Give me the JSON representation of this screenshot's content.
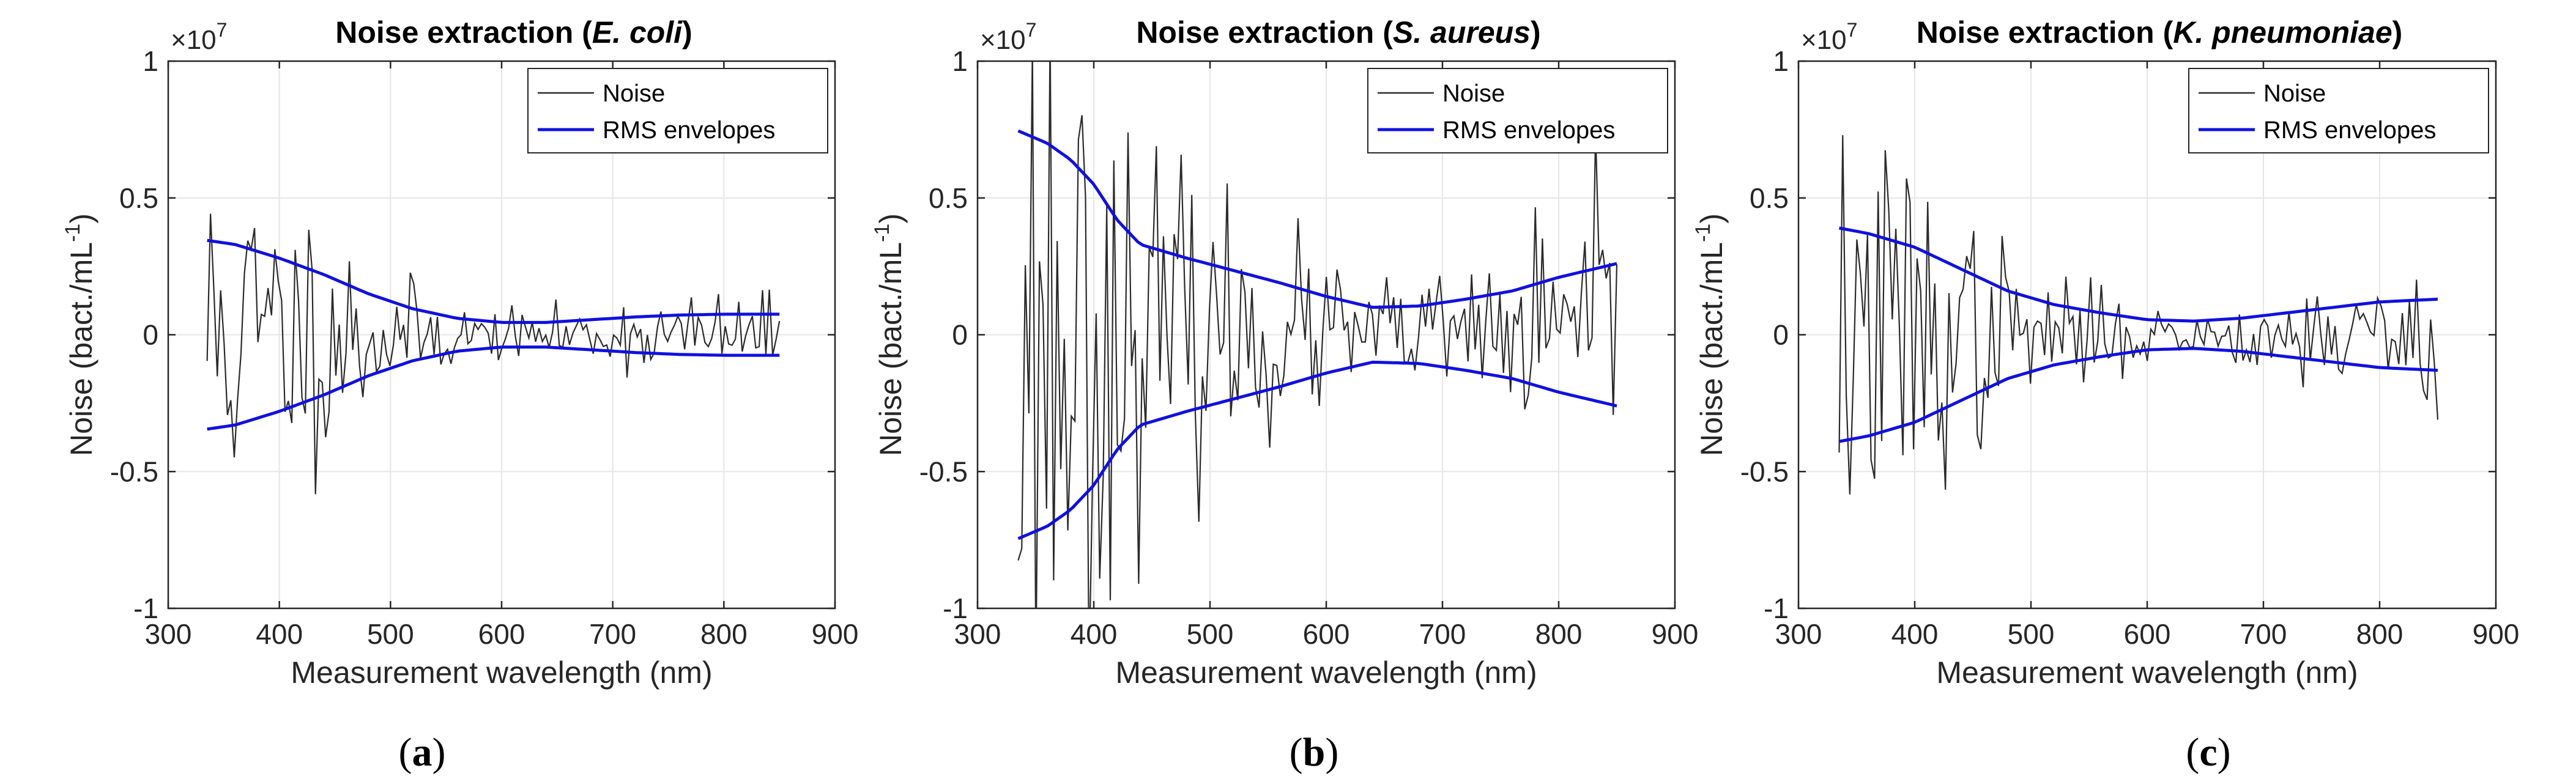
{
  "colors": {
    "noise": "#2b2b2b",
    "envelope": "#1010e0",
    "axis": "#262626",
    "grid": "#e6e6e6"
  },
  "chart_data": [
    {
      "type": "line",
      "panel_label": "a",
      "title_prefix": "Noise extraction (",
      "title_organism": "E. coli",
      "title_suffix": ")",
      "xlabel": "Measurement wavelength (nm)",
      "ylabel": "Noise (bact./mL",
      "ylabel_sup": "-1",
      "ylabel_end": ")",
      "y_multiplier": "×10",
      "y_multiplier_exp": "7",
      "xlim": [
        300,
        900
      ],
      "ylim": [
        -1,
        1
      ],
      "xticks": [
        300,
        400,
        500,
        600,
        700,
        800,
        900
      ],
      "yticks": [
        -1,
        -0.5,
        0,
        0.5,
        1
      ],
      "ytick_labels": [
        "-1",
        "-0.5",
        "0",
        "0.5",
        "1"
      ],
      "grid": true,
      "legend_position": "top-right",
      "noise_x_range": [
        335,
        850
      ],
      "noise_points": 170,
      "noise_seed": 11,
      "series": [
        {
          "name": "Noise",
          "kind": "noise"
        },
        {
          "name": "RMS envelopes",
          "kind": "envelope",
          "x": [
            335,
            360,
            400,
            440,
            480,
            520,
            560,
            600,
            640,
            680,
            720,
            760,
            800,
            850
          ],
          "upper": [
            0.345,
            0.33,
            0.28,
            0.22,
            0.15,
            0.095,
            0.06,
            0.045,
            0.045,
            0.055,
            0.065,
            0.072,
            0.075,
            0.075
          ],
          "lower": [
            -0.345,
            -0.33,
            -0.28,
            -0.22,
            -0.15,
            -0.095,
            -0.06,
            -0.045,
            -0.045,
            -0.055,
            -0.065,
            -0.072,
            -0.075,
            -0.075
          ]
        }
      ]
    },
    {
      "type": "line",
      "panel_label": "b",
      "title_prefix": "Noise extraction (",
      "title_organism": "S. aureus",
      "title_suffix": ")",
      "xlabel": "Measurement wavelength (nm)",
      "ylabel": "Noise (bact./mL",
      "ylabel_sup": "-1",
      "ylabel_end": ")",
      "y_multiplier": "×10",
      "y_multiplier_exp": "7",
      "xlim": [
        300,
        900
      ],
      "ylim": [
        -1,
        1
      ],
      "xticks": [
        300,
        400,
        500,
        600,
        700,
        800,
        900
      ],
      "yticks": [
        -1,
        -0.5,
        0,
        0.5,
        1
      ],
      "ytick_labels": [
        "-1",
        "-0.5",
        "0",
        "0.5",
        "1"
      ],
      "grid": true,
      "legend_position": "top-right",
      "noise_x_range": [
        335,
        850
      ],
      "noise_points": 170,
      "noise_seed": 23,
      "series": [
        {
          "name": "Noise",
          "kind": "noise"
        },
        {
          "name": "RMS envelopes",
          "kind": "envelope",
          "x": [
            335,
            360,
            380,
            400,
            420,
            440,
            480,
            520,
            560,
            600,
            640,
            680,
            720,
            760,
            800,
            850
          ],
          "upper": [
            0.745,
            0.7,
            0.64,
            0.55,
            0.42,
            0.33,
            0.28,
            0.235,
            0.19,
            0.14,
            0.1,
            0.105,
            0.13,
            0.16,
            0.21,
            0.26
          ],
          "lower": [
            -0.745,
            -0.7,
            -0.64,
            -0.55,
            -0.42,
            -0.33,
            -0.28,
            -0.235,
            -0.19,
            -0.14,
            -0.1,
            -0.105,
            -0.13,
            -0.16,
            -0.21,
            -0.26
          ]
        }
      ]
    },
    {
      "type": "line",
      "panel_label": "c",
      "title_prefix": "Noise extraction (",
      "title_organism": "K. pneumoniae",
      "title_suffix": ")",
      "xlabel": "Measurement wavelength (nm)",
      "ylabel": "Noise (bact./mL",
      "ylabel_sup": "-1",
      "ylabel_end": ")",
      "y_multiplier": "×10",
      "y_multiplier_exp": "7",
      "xlim": [
        300,
        900
      ],
      "ylim": [
        -1,
        1
      ],
      "xticks": [
        300,
        400,
        500,
        600,
        700,
        800,
        900
      ],
      "yticks": [
        -1,
        -0.5,
        0,
        0.5,
        1
      ],
      "ytick_labels": [
        "-1",
        "-0.5",
        "0",
        "0.5",
        "1"
      ],
      "grid": true,
      "legend_position": "top-right",
      "noise_x_range": [
        335,
        850
      ],
      "noise_points": 170,
      "noise_seed": 37,
      "series": [
        {
          "name": "Noise",
          "kind": "noise"
        },
        {
          "name": "RMS envelopes",
          "kind": "envelope",
          "x": [
            335,
            360,
            400,
            440,
            480,
            520,
            560,
            600,
            640,
            680,
            720,
            760,
            800,
            850
          ],
          "upper": [
            0.39,
            0.37,
            0.32,
            0.24,
            0.16,
            0.11,
            0.08,
            0.055,
            0.05,
            0.06,
            0.08,
            0.1,
            0.12,
            0.13
          ],
          "lower": [
            -0.39,
            -0.37,
            -0.32,
            -0.24,
            -0.16,
            -0.11,
            -0.08,
            -0.055,
            -0.05,
            -0.06,
            -0.08,
            -0.1,
            -0.12,
            -0.13
          ]
        }
      ]
    }
  ]
}
